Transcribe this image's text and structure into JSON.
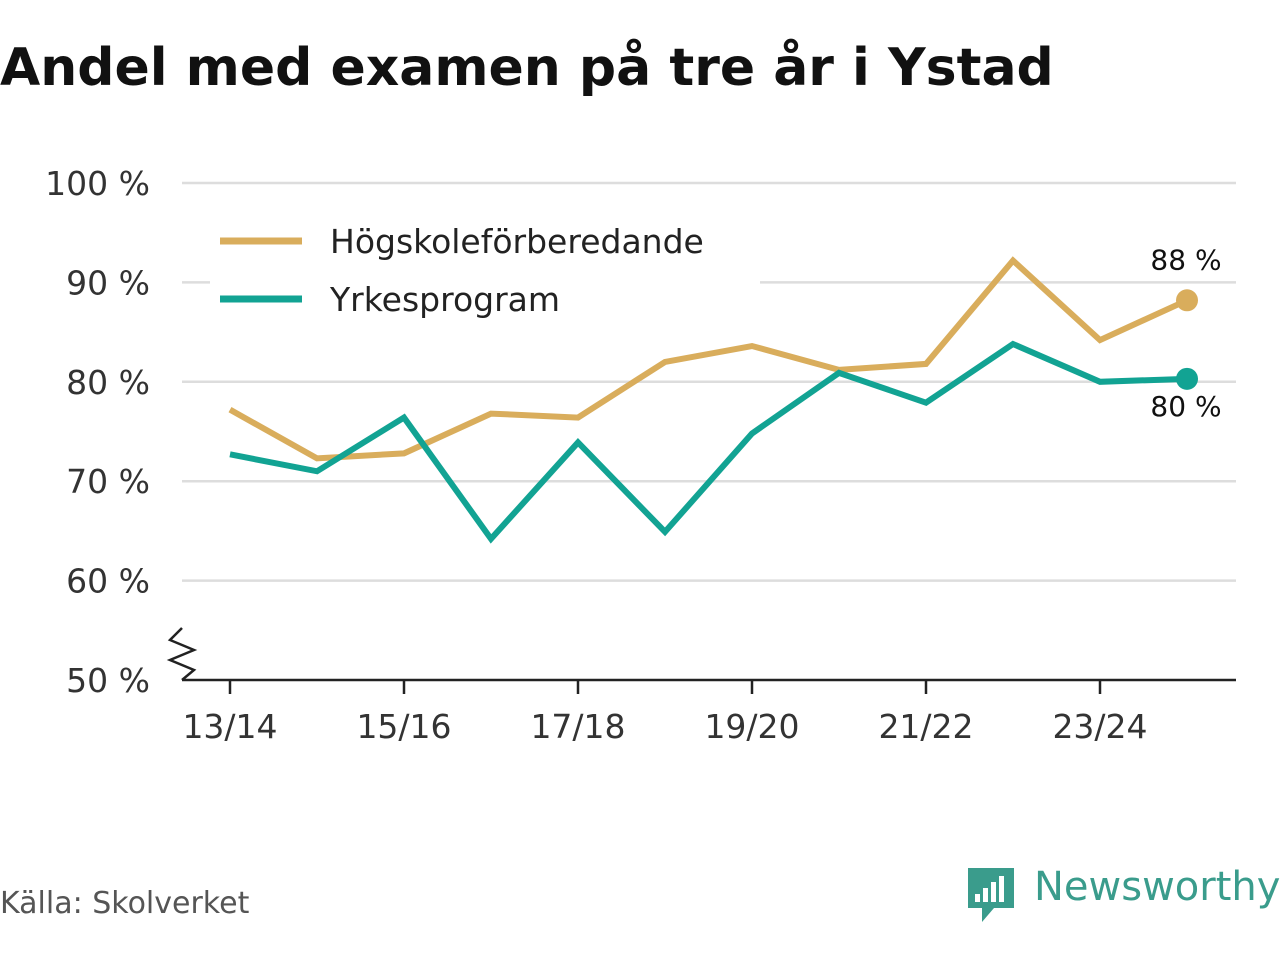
{
  "title": "Andel med examen på tre år i Ystad",
  "source": "Källa: Skolverket",
  "brand": {
    "name": "Newsworthy",
    "color": "#3a9c8c"
  },
  "chart_data": {
    "type": "line",
    "x": [
      "13/14",
      "14/15",
      "15/16",
      "16/17",
      "17/18",
      "18/19",
      "19/20",
      "20/21",
      "21/22",
      "22/23",
      "23/24",
      "24/25"
    ],
    "x_tick_labels": [
      "13/14",
      "15/16",
      "17/18",
      "19/20",
      "21/22",
      "23/24"
    ],
    "y_tick_labels": [
      "100 %",
      "90 %",
      "80 %",
      "70 %",
      "60 %",
      "50 %"
    ],
    "y_ticks": [
      100,
      90,
      80,
      70,
      60,
      50
    ],
    "ylim": [
      50,
      100
    ],
    "grid": true,
    "legend_position": "top-left",
    "series": [
      {
        "name": "Högskoleförberedande",
        "color": "#d9ad5c",
        "values": [
          77.2,
          72.3,
          72.8,
          76.8,
          76.4,
          82.0,
          83.6,
          81.2,
          81.8,
          92.2,
          84.2,
          88.2
        ],
        "end_label": "88 %"
      },
      {
        "name": "Yrkesprogram",
        "color": "#12a393",
        "values": [
          72.7,
          71.0,
          76.4,
          64.2,
          73.9,
          64.9,
          74.8,
          80.9,
          77.9,
          83.8,
          80.0,
          80.3
        ],
        "end_label": "80 %"
      }
    ]
  }
}
